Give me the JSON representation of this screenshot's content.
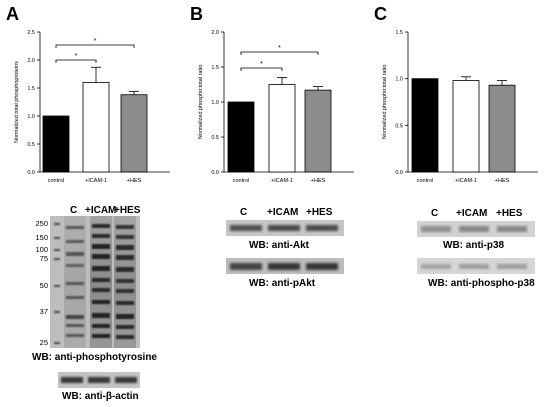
{
  "panels": {
    "A": {
      "letter": "A",
      "lane_labels": [
        "C",
        "+ICAM",
        "+HES"
      ],
      "mw_markers": [
        "250",
        "150",
        "100",
        "75",
        "50",
        "37",
        "25"
      ],
      "wb_main": "WB: anti-phosphotyrosine",
      "wb_loading": "WB: anti-β-actin"
    },
    "B": {
      "letter": "B",
      "lane_labels": [
        "C",
        "+ICAM",
        "+HES"
      ],
      "wb_top": "WB: anti-Akt",
      "wb_bottom": "WB: anti-pAkt"
    },
    "C": {
      "letter": "C",
      "lane_labels": [
        "C",
        "+ICAM",
        "+HES"
      ],
      "wb_top": "WB: anti-p38",
      "wb_bottom": "WB: anti-phospho-p38"
    }
  },
  "chart_data": [
    {
      "type": "bar",
      "categories": [
        "control",
        "+ICAM-1",
        "+HES"
      ],
      "values": [
        1.0,
        1.6,
        1.38
      ],
      "errors": [
        0,
        0.27,
        0.06
      ],
      "ylabel": "Normalized total phosphoproteins",
      "ylim": [
        0,
        2.5
      ],
      "yticks": [
        "0.0",
        "0.5",
        "1.0",
        "1.5",
        "2.0",
        "2.5"
      ],
      "bar_colors": [
        "#000000",
        "#ffffff",
        "#8c8c8c"
      ],
      "significance": [
        {
          "from": 0,
          "to": 1,
          "label": "*"
        },
        {
          "from": 0,
          "to": 2,
          "label": "*"
        }
      ]
    },
    {
      "type": "bar",
      "categories": [
        "control",
        "+ICAM-1",
        "+HES"
      ],
      "values": [
        1.0,
        1.25,
        1.17
      ],
      "errors": [
        0,
        0.1,
        0.05
      ],
      "ylabel": "Normalized phospho:total ratio",
      "ylim": [
        0,
        2.0
      ],
      "yticks": [
        "0.0",
        "0.5",
        "1.0",
        "1.5",
        "2.0"
      ],
      "bar_colors": [
        "#000000",
        "#ffffff",
        "#8c8c8c"
      ],
      "significance": [
        {
          "from": 0,
          "to": 1,
          "label": "*"
        },
        {
          "from": 0,
          "to": 2,
          "label": "*"
        }
      ]
    },
    {
      "type": "bar",
      "categories": [
        "control",
        "+ICAM-1",
        "+HES"
      ],
      "values": [
        1.0,
        0.98,
        0.93
      ],
      "errors": [
        0,
        0.04,
        0.05
      ],
      "ylabel": "Normalized phospho:total ratio",
      "ylim": [
        0,
        1.5
      ],
      "yticks": [
        "0.0",
        "0.5",
        "1.0",
        "1.5"
      ],
      "bar_colors": [
        "#000000",
        "#ffffff",
        "#8c8c8c"
      ],
      "significance": []
    }
  ]
}
